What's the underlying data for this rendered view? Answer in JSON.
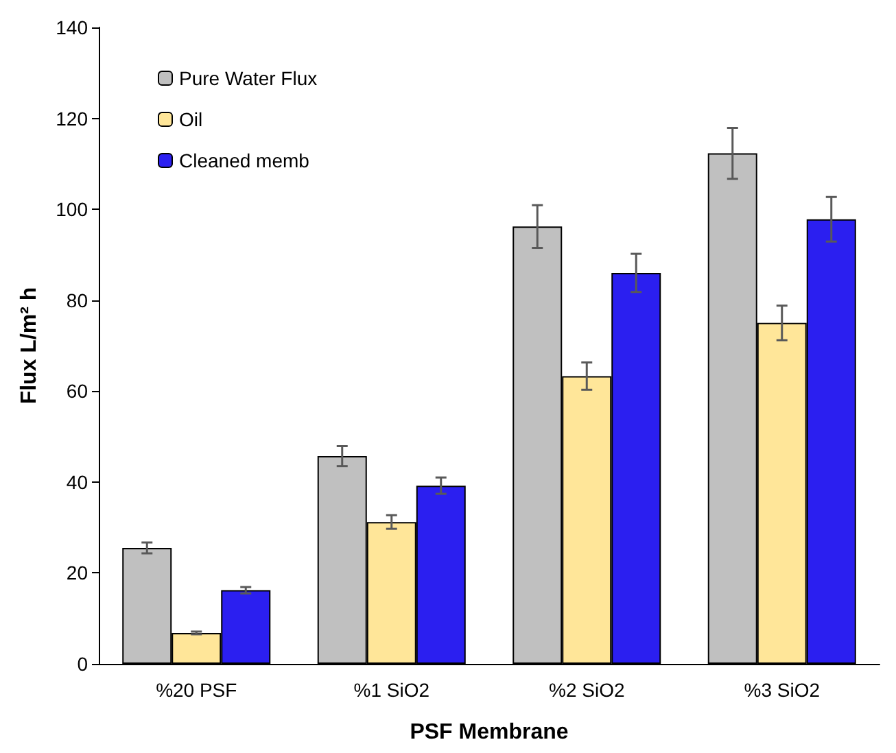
{
  "chart_data": {
    "type": "bar",
    "xlabel": "PSF Membrane",
    "ylabel": "Flux L/m² h",
    "categories": [
      "%20 PSF",
      "%1 SiO2",
      "%2 SiO2",
      "%3 SiO2"
    ],
    "series": [
      {
        "name": "Pure Water Flux",
        "color": "#c0c0c0",
        "values": [
          25.5,
          45.7,
          96.2,
          112.3
        ],
        "errors": [
          1.2,
          2.2,
          4.7,
          5.6
        ]
      },
      {
        "name": "Oil",
        "color": "#ffe699",
        "values": [
          6.8,
          31.2,
          63.3,
          75
        ],
        "errors": [
          0.3,
          1.5,
          3,
          3.8
        ]
      },
      {
        "name": "Cleaned memb",
        "color": "#2b1ff0",
        "values": [
          16.2,
          39.2,
          86,
          97.8
        ],
        "errors": [
          0.7,
          1.8,
          4.2,
          4.9
        ]
      }
    ],
    "ylim": [
      0,
      140
    ],
    "yticks": [
      0,
      20,
      40,
      60,
      80,
      100,
      120,
      140
    ],
    "grid": false,
    "legend": "top left"
  }
}
